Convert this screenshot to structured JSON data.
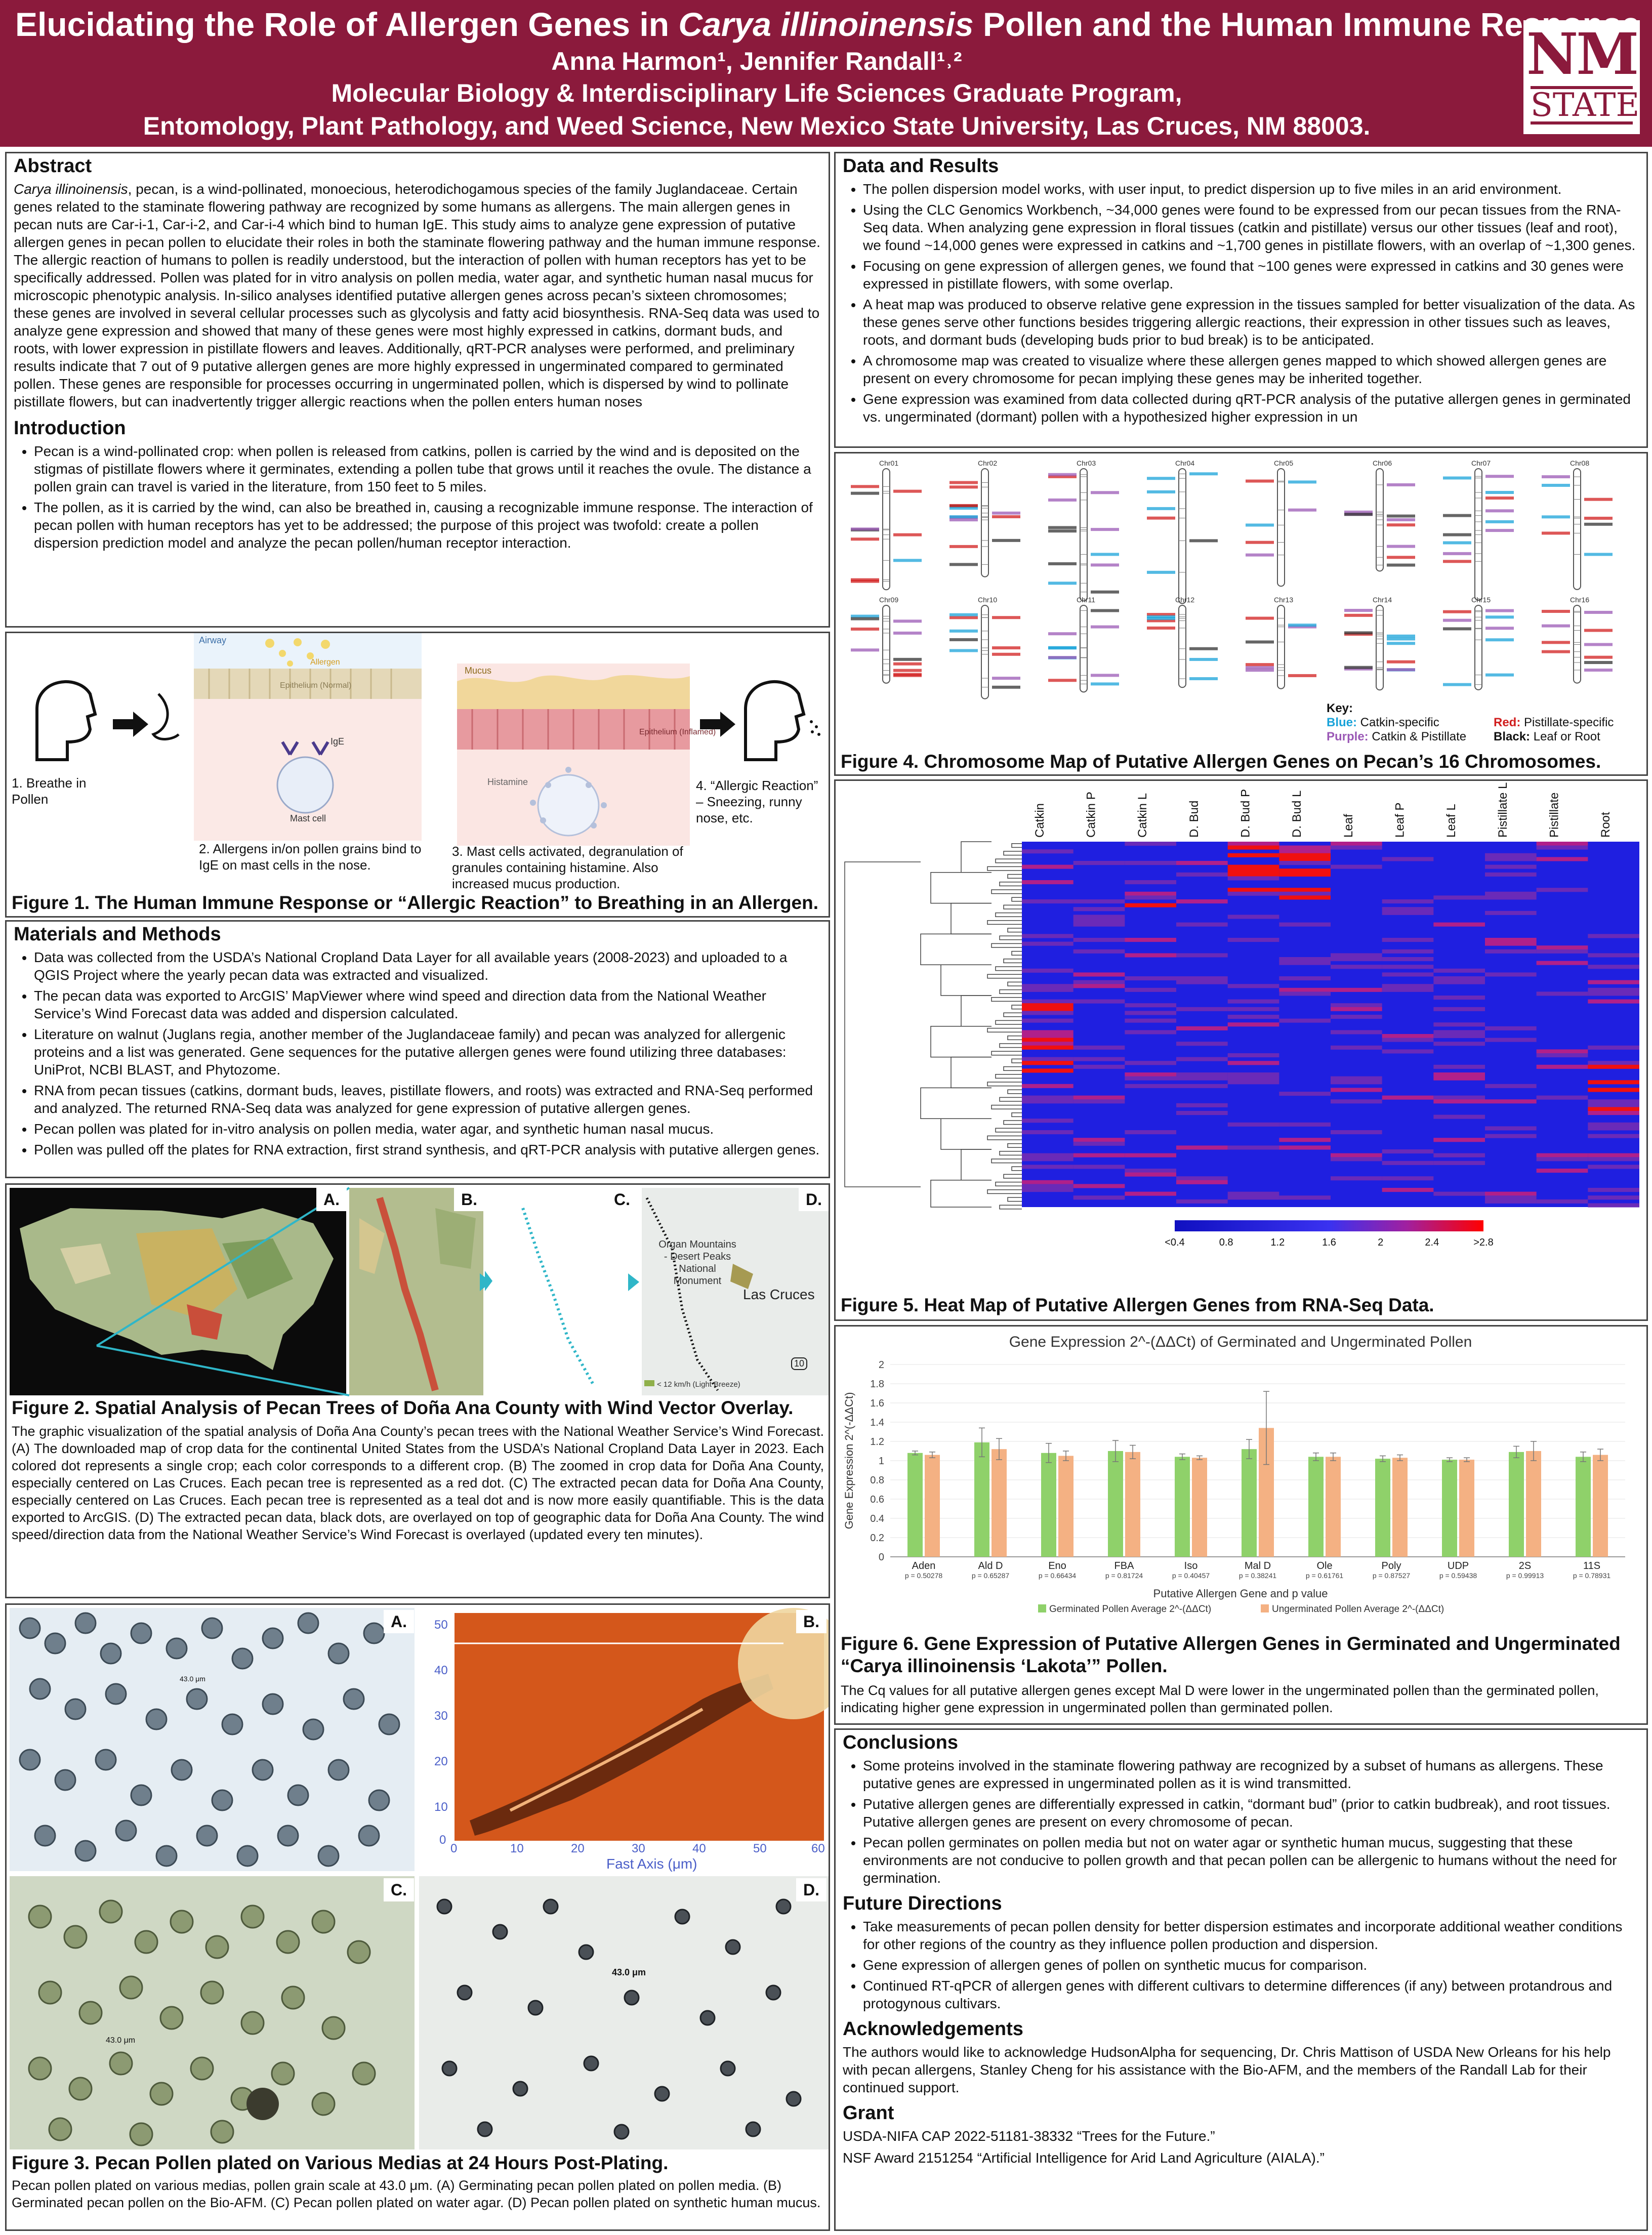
{
  "header": {
    "title_pre": "Elucidating the Role of Allergen Genes in ",
    "title_italic": "Carya illinoinensis",
    "title_post": " Pollen and the Human Immune Response",
    "authors": "Anna Harmon¹, Jennifer Randall¹˒²",
    "program": "Molecular Biology & Interdisciplinary Life Sciences Graduate Program,",
    "institution": "Entomology, Plant Pathology, and Weed Science, New Mexico State University, Las Cruces, NM 88003.",
    "logo_top": "NM",
    "logo_bottom": "STATE"
  },
  "abstract": {
    "heading": "Abstract",
    "species": "Carya illinoinensis",
    "text": ", pecan, is a wind-pollinated, monoecious, heterodichogamous species of the family Juglandaceae. Certain genes related to the staminate flowering pathway are recognized by some humans as allergens. The main allergen genes in pecan nuts are Car-i-1, Car-i-2, and Car-i-4 which bind to human IgE. This study aims to analyze gene expression of putative allergen genes in pecan pollen to elucidate their roles in both the staminate flowering pathway and the human immune response. The allergic reaction of humans to pollen is readily understood, but the interaction of pollen with human receptors has yet to be specifically addressed. Pollen was plated for in vitro analysis on pollen media, water agar, and synthetic human nasal mucus for microscopic phenotypic analysis. In-silico analyses identified putative allergen genes across pecan’s sixteen chromosomes; these genes are involved in several cellular processes such as glycolysis and fatty acid biosynthesis. RNA-Seq data was used to analyze gene expression and showed that many of these genes were most highly expressed in catkins, dormant buds, and roots, with lower expression in pistillate flowers and leaves. Additionally, qRT-PCR analyses were performed, and preliminary results indicate that 7 out of 9 putative allergen genes are more highly expressed in ungerminated compared to germinated pollen. These genes are responsible for processes occurring in ungerminated pollen, which is dispersed by wind to pollinate pistillate flowers, but can inadvertently trigger allergic reactions when the pollen enters human noses"
  },
  "introduction": {
    "heading": "Introduction",
    "items": [
      "Pecan is a wind-pollinated crop: when pollen is released from catkins, pollen is carried by the wind and is deposited on the stigmas of pistillate flowers where it germinates, extending a pollen tube that grows until it reaches the ovule. The distance a pollen grain can travel is varied in the literature, from 150 feet to 5 miles.",
      "The pollen, as it is carried by the wind, can also be breathed in, causing a recognizable immune response. The interaction of pecan pollen with human receptors has yet to be addressed; the purpose of this project was twofold: create a pollen dispersion prediction model and analyze the pecan pollen/human receptor interaction."
    ]
  },
  "figure1": {
    "steps": [
      "1. Breathe in Pollen",
      "2. Allergens in/on pollen grains bind to IgE on mast cells in the nose.",
      "3. Mast cells activated, degranulation of granules containing histamine. Also increased mucus production.",
      "4. “Allergic Reaction” – Sneezing, runny nose, etc."
    ],
    "labels": [
      "Airway",
      "Allergen",
      "Epithelium (Normal)",
      "IgE",
      "Mast cell",
      "Mucus",
      "Epithelium (Inflamed)",
      "Histamine"
    ],
    "caption": "Figure 1. The Human Immune Response or “Allergic Reaction” to Breathing in an Allergen."
  },
  "methods": {
    "heading": "Materials and Methods",
    "items": [
      "Data was collected from the USDA’s National Cropland Data Layer for all available years (2008-2023) and uploaded to a QGIS Project where the yearly pecan data was extracted and visualized.",
      "The pecan data was exported to ArcGIS’ MapViewer where wind speed and direction data from the National Weather Service’s Wind Forecast data was added and dispersion calculated.",
      "Literature on walnut (Juglans regia, another member of the Juglandaceae family) and pecan was analyzed for allergenic proteins and a list was generated. Gene sequences for the putative allergen genes were found utilizing three databases: UniProt, NCBI BLAST, and Phytozome.",
      "RNA from pecan tissues (catkins, dormant buds, leaves, pistillate flowers, and roots) was extracted and RNA-Seq performed and analyzed. The returned RNA-Seq data was analyzed for gene expression of putative allergen genes.",
      "Pecan pollen was plated for in-vitro analysis on pollen media, water agar, and synthetic human nasal mucus.",
      "Pollen was pulled off the plates for RNA extraction, first strand synthesis, and qRT-PCR analysis with putative allergen genes."
    ]
  },
  "figure2": {
    "panels": [
      "A.",
      "B.",
      "C.",
      "D."
    ],
    "map_labels": [
      "Organ Mountains - Desert Peaks National Monument",
      "Las Cruces",
      "< 12 km/h (Light Breeze)",
      "10"
    ],
    "caption": "Figure 2. Spatial Analysis of Pecan Trees of Doña Ana County with Wind Vector Overlay.",
    "text": "The graphic visualization of the spatial analysis of Doña Ana County’s pecan trees with the National Weather Service’s Wind Forecast. (A) The downloaded map of crop data for the continental United States from the USDA’s National Cropland Data Layer in 2023. Each colored dot represents a single crop; each color corresponds to a different crop. (B) The zoomed in crop data for Doña Ana County, especially centered on Las Cruces. Each pecan tree is represented as a red dot. (C) The extracted pecan data for Doña Ana County, especially centered on Las Cruces. Each pecan tree is represented as a teal dot and is now more easily quantifiable. This is the data exported to ArcGIS. (D) The extracted pecan data, black dots, are overlayed on top of geographic data for Doña Ana County. The wind speed/direction data from the National Weather Service’s Wind Forecast is overlayed (updated every ten minutes)."
  },
  "figure3": {
    "panels": [
      "A.",
      "B.",
      "C.",
      "D."
    ],
    "scale": "43.0 μm",
    "afm_axis": "Fast Axis  (μm)",
    "afm_xticks": [
      "0",
      "10",
      "20",
      "30",
      "40",
      "50",
      "60"
    ],
    "afm_yticks": [
      "50",
      "40",
      "30",
      "20",
      "10",
      "0"
    ],
    "caption": "Figure 3. Pecan Pollen plated on Various Medias at 24 Hours Post-Plating.",
    "text": "Pecan pollen plated on various medias, pollen grain scale at 43.0 μm. (A) Germinating pecan pollen plated on pollen media. (B) Germinated pecan pollen on the Bio-AFM. (C) Pecan pollen plated on water agar. (D) Pecan pollen plated on synthetic human mucus."
  },
  "results": {
    "heading": "Data and Results",
    "items": [
      "The pollen dispersion model works, with user input, to predict dispersion up to five miles in an arid environment.",
      "Using the CLC Genomics Workbench, ~34,000 genes were found to be expressed from our pecan tissues from the RNA-Seq data. When analyzing gene expression in floral tissues (catkin and pistillate) versus our other tissues (leaf and root), we found ~14,000 genes were expressed in catkins and ~1,700 genes in pistillate flowers, with an overlap of ~1,300 genes.",
      "Focusing on gene expression of allergen genes, we found that ~100 genes were expressed in catkins and 30 genes were expressed in pistillate flowers, with some overlap.",
      "A heat map was produced to observe relative gene expression in the tissues sampled for better visualization of the data. As these genes serve other functions besides triggering allergic reactions, their expression in other tissues such as leaves, roots, and dormant buds (developing buds prior to bud break) is to be anticipated.",
      "A chromosome map was created to visualize where these allergen genes mapped to which showed allergen genes are present on every chromosome for pecan implying these genes may be inherited together.",
      "Gene expression was examined from data collected during qRT-PCR analysis of the putative allergen genes in germinated vs. ungerminated (dormant) pollen with a hypothesized higher expression in un"
    ]
  },
  "figure4": {
    "chromosomes": [
      "Chr01",
      "Chr02",
      "Chr03",
      "Chr04",
      "Chr05",
      "Chr06",
      "Chr07",
      "Chr08",
      "Chr09",
      "Chr10",
      "Chr11",
      "Chr12",
      "Chr13",
      "Chr14",
      "Chr15",
      "Chr16"
    ],
    "key_title": "Key:",
    "key": [
      {
        "label": "Blue:",
        "text": " Catkin-specific",
        "color": "#1aa3d9"
      },
      {
        "label": "Red:",
        "text": " Pistillate-specific",
        "color": "#d11f1f"
      },
      {
        "label": "Purple:",
        "text": " Catkin & Pistillate",
        "color": "#9b59b6"
      },
      {
        "label": "Black:",
        "text": " Leaf or Root",
        "color": "#111111"
      }
    ],
    "caption": "Figure 4. Chromosome Map of Putative Allergen Genes on Pecan’s 16 Chromosomes."
  },
  "figure5": {
    "columns": [
      "Catkin",
      "Catkin P",
      "Catkin L",
      "D. Bud",
      "D. Bud P",
      "D. Bud L",
      "Leaf",
      "Leaf P",
      "Leaf L",
      "Pistillate L",
      "Pistillate",
      "Root"
    ],
    "scale_ticks": [
      "<0.4",
      "0.8",
      "1.2",
      "1.6",
      "2",
      "2.4",
      ">2.8"
    ],
    "caption": "Figure 5. Heat Map of Putative Allergen Genes from RNA-Seq Data."
  },
  "figure6": {
    "caption": "Figure 6. Gene Expression of Putative Allergen Genes in Germinated and Ungerminated “Carya illinoinensis ‘Lakota’” Pollen.",
    "text": "The Cq values for all putative allergen genes except Mal D were lower in the ungerminated pollen than the germinated pollen, indicating higher gene expression in ungerminated pollen than germinated pollen."
  },
  "chart_data": {
    "type": "bar",
    "title": "Gene Expression 2^-(ΔΔCt) of Germinated and Ungerminated Pollen",
    "xlabel": "Putative Allergen Gene and p value",
    "ylabel": "Gene Expression 2^(-ΔΔCt)",
    "ylim": [
      0,
      2
    ],
    "yticks": [
      "0",
      "0.2",
      "0.4",
      "0.6",
      "0.8",
      "1",
      "1.2",
      "1.4",
      "1.6",
      "1.8",
      "2"
    ],
    "categories": [
      "Aden",
      "Ald D",
      "Eno",
      "FBA",
      "Iso",
      "Mal D",
      "Ole",
      "Poly",
      "UDP",
      "2S",
      "11S"
    ],
    "p_values": [
      "p = 0.50278",
      "p = 0.65287",
      "p = 0.66434",
      "p = 0.81724",
      "p = 0.40457",
      "p = 0.38241",
      "p = 0.61761",
      "p = 0.87527",
      "p = 0.59438",
      "p = 0.99913",
      "p = 0.78931"
    ],
    "series": [
      {
        "name": "Germinated Pollen Average 2^-(ΔΔCt)",
        "color": "#8fd16a",
        "values": [
          1.08,
          1.19,
          1.08,
          1.1,
          1.04,
          1.12,
          1.04,
          1.02,
          1.01,
          1.09,
          1.04
        ],
        "errors": [
          0.02,
          0.15,
          0.1,
          0.11,
          0.03,
          0.1,
          0.04,
          0.03,
          0.02,
          0.06,
          0.05
        ]
      },
      {
        "name": "Ungerminated Pollen Average 2^-(ΔΔCt)",
        "color": "#f4b183",
        "values": [
          1.06,
          1.12,
          1.05,
          1.09,
          1.03,
          1.34,
          1.04,
          1.03,
          1.01,
          1.1,
          1.06
        ],
        "errors": [
          0.03,
          0.11,
          0.05,
          0.07,
          0.02,
          0.38,
          0.04,
          0.03,
          0.02,
          0.1,
          0.06
        ]
      }
    ],
    "legend": "bottom"
  },
  "conclusions": {
    "heading": "Conclusions",
    "items": [
      "Some proteins involved in the staminate flowering pathway are recognized by a subset of humans as allergens. These putative genes are expressed in ungerminated pollen as it is wind transmitted.",
      "Putative allergen genes are differentially expressed in catkin, “dormant bud” (prior to catkin budbreak), and root tissues. Putative allergen genes are present on every chromosome of pecan.",
      "Pecan pollen germinates on pollen media but not on water agar or synthetic human mucus, suggesting that these environments are not conducive to pollen growth and that pecan pollen can be allergenic to humans without the need for germination."
    ]
  },
  "future": {
    "heading": "Future Directions",
    "items": [
      "Take measurements of pecan pollen density for better dispersion estimates and incorporate additional weather conditions for other regions of the country as they influence pollen production and dispersion.",
      "Gene expression of allergen genes of pollen on synthetic mucus for comparison.",
      "Continued RT-qPCR of allergen genes with different cultivars to determine differences (if any) between protandrous and protogynous cultivars."
    ]
  },
  "acknowledgements": {
    "heading": "Acknowledgements",
    "text": "The authors would like to acknowledge HudsonAlpha for sequencing, Dr. Chris Mattison of USDA New Orleans for his help with pecan allergens, Stanley Cheng for his assistance with the Bio-AFM, and the members of the Randall Lab for their continued support."
  },
  "grant": {
    "heading": "Grant",
    "lines": [
      "USDA-NIFA CAP 2022-51181-38332 “Trees for the Future.”",
      "NSF Award 2151254 “Artificial Intelligence for Arid Land Agriculture (AIALA).”"
    ]
  }
}
